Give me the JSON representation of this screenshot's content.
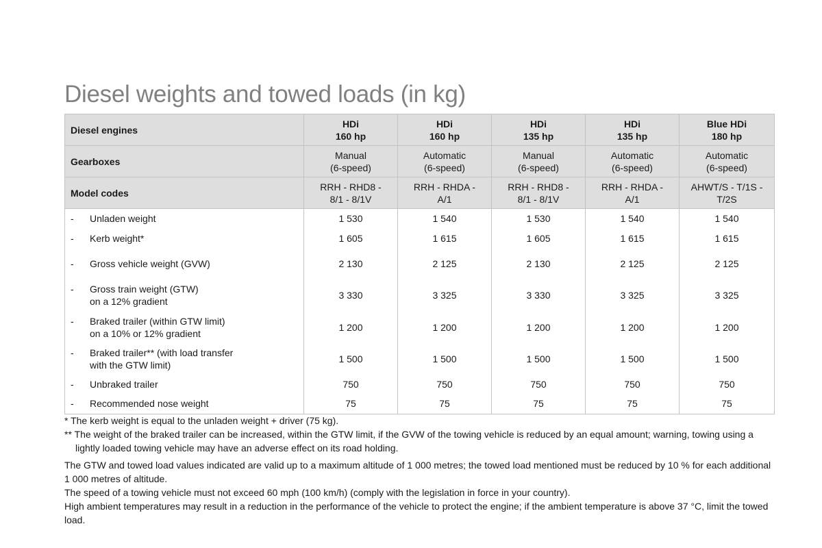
{
  "title": "Diesel weights and towed loads (in kg)",
  "table": {
    "header_rows": [
      {
        "label": "Diesel engines",
        "bold": true,
        "cells": [
          "HDi\n160 hp",
          "HDi\n160 hp",
          "HDi\n135 hp",
          "HDi\n135 hp",
          "Blue HDi\n180 hp"
        ]
      },
      {
        "label": "Gearboxes",
        "bold": false,
        "cells": [
          "Manual\n(6-speed)",
          "Automatic\n(6-speed)",
          "Manual\n(6-speed)",
          "Automatic\n(6-speed)",
          "Automatic\n(6-speed)"
        ]
      },
      {
        "label": "Model codes",
        "bold": false,
        "cells": [
          "RRH - RHD8 -\n8/1 - 8/1V",
          "RRH - RHDA -\nA/1",
          "RRH - RHD8 -\n8/1 - 8/1V",
          "RRH - RHDA -\nA/1",
          "AHWT/S - T/1S -\nT/2S"
        ]
      }
    ],
    "rows": [
      {
        "dash": "-",
        "label": "Unladen weight",
        "values": [
          "1 530",
          "1 540",
          "1 530",
          "1 540",
          "1 540"
        ]
      },
      {
        "dash": "-",
        "label": "Kerb weight*",
        "values": [
          "1 605",
          "1 615",
          "1 605",
          "1 615",
          "1 615"
        ]
      },
      {
        "dash": "-",
        "label": "Gross vehicle weight (GVW)",
        "values": [
          "2 130",
          "2 125",
          "2 130",
          "2 125",
          "2 125"
        ]
      },
      {
        "dash": "-",
        "label": "Gross train weight (GTW)\non a 12% gradient",
        "values": [
          "3 330",
          "3 325",
          "3 330",
          "3 325",
          "3 325"
        ]
      },
      {
        "dash": "-",
        "label": "Braked trailer (within GTW limit)\non a 10% or 12% gradient",
        "values": [
          "1 200",
          "1 200",
          "1 200",
          "1 200",
          "1 200"
        ]
      },
      {
        "dash": "-",
        "label": "Braked trailer** (with load transfer\nwith the GTW limit)",
        "values": [
          "1 500",
          "1 500",
          "1 500",
          "1 500",
          "1 500"
        ]
      },
      {
        "dash": "-",
        "label": "Unbraked trailer",
        "values": [
          "750",
          "750",
          "750",
          "750",
          "750"
        ]
      },
      {
        "dash": "-",
        "label": "Recommended nose weight",
        "values": [
          "75",
          "75",
          "75",
          "75",
          "75"
        ]
      }
    ]
  },
  "notes": {
    "footnote1": "* The kerb weight is equal to the unladen weight + driver (75 kg).",
    "footnote2": "** The weight of the braked trailer can be increased, within the GTW limit, if the GVW of the towing vehicle is reduced by an equal amount; warning, towing using a lightly loaded towing vehicle may have an adverse effect on its road holding.",
    "para1": "The GTW and towed load values indicated are valid up to a maximum altitude of 1 000 metres; the towed load mentioned must be reduced by 10 % for each additional 1 000 metres of altitude.",
    "para2": "The speed of a towing vehicle must not exceed 60 mph (100 km/h) (comply with the legislation in force in your country).",
    "para3": "High ambient temperatures may result in a reduction in the performance of the vehicle to protect the engine; if the ambient temperature is above 37 °C, limit the towed load."
  }
}
